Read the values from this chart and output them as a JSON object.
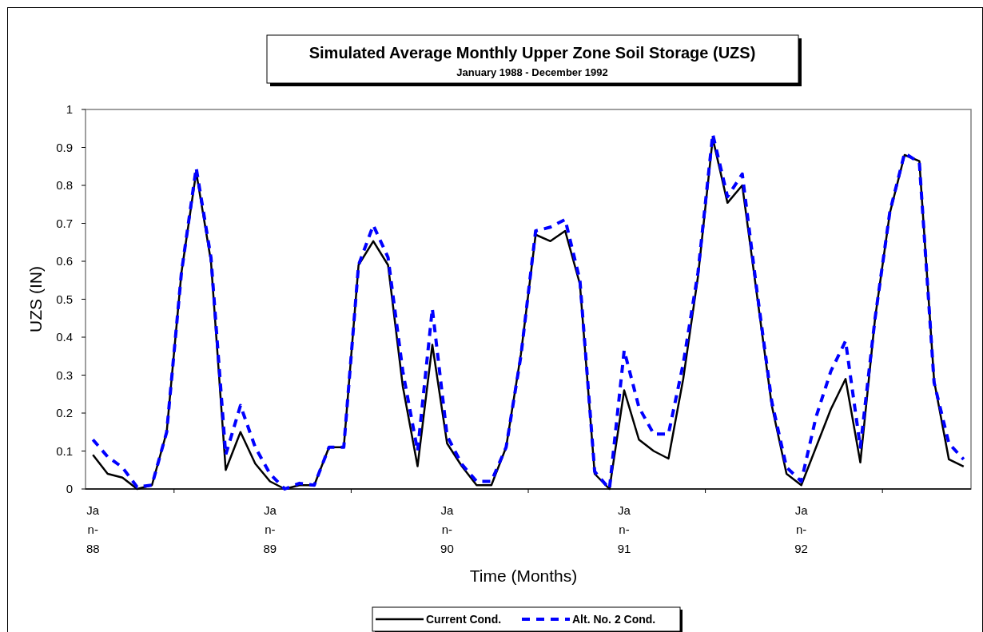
{
  "chart_data": {
    "type": "line",
    "title": "Simulated Average Monthly Upper Zone Soil Storage (UZS)",
    "subtitle": "January 1988 - December 1992",
    "xlabel": "Time (Months)",
    "ylabel": "UZS (IN)",
    "categories": [
      "Jan-88",
      null,
      null,
      null,
      null,
      null,
      null,
      null,
      null,
      null,
      null,
      null,
      "Jan-89",
      null,
      null,
      null,
      null,
      null,
      null,
      null,
      null,
      null,
      null,
      null,
      "Jan-90",
      null,
      null,
      null,
      null,
      null,
      null,
      null,
      null,
      null,
      null,
      null,
      "Jan-91",
      null,
      null,
      null,
      null,
      null,
      null,
      null,
      null,
      null,
      null,
      null,
      "Jan-92",
      null,
      null,
      null,
      null,
      null,
      null,
      null,
      null,
      null,
      null,
      null
    ],
    "ylim": [
      0,
      1
    ],
    "yticks": [
      0,
      0.1,
      0.2,
      0.3,
      0.4,
      0.5,
      0.6,
      0.7,
      0.8,
      0.9,
      1
    ],
    "grid": false,
    "legend": "bottom",
    "marker": "none",
    "series": [
      {
        "name": "Current Cond.",
        "color": "#000000",
        "line_style": "solid",
        "values": [
          0.09,
          0.04,
          0.03,
          0.0,
          0.01,
          0.15,
          0.57,
          0.835,
          0.6,
          0.05,
          0.15,
          0.067,
          0.02,
          0.0,
          0.01,
          0.01,
          0.11,
          0.11,
          0.59,
          0.653,
          0.59,
          0.27,
          0.06,
          0.38,
          0.12,
          0.06,
          0.01,
          0.01,
          0.11,
          0.355,
          0.67,
          0.653,
          0.68,
          0.54,
          0.04,
          0.0,
          0.26,
          0.13,
          0.1,
          0.08,
          0.29,
          0.56,
          0.924,
          0.754,
          0.8,
          0.51,
          0.22,
          0.04,
          0.01,
          0.11,
          0.21,
          0.29,
          0.07,
          0.45,
          0.727,
          0.88,
          0.864,
          0.285,
          0.078,
          0.059
        ]
      },
      {
        "name": "Alt. No. 2 Cond.",
        "color": "#0000ff",
        "line_style": "dashed",
        "values": [
          0.13,
          0.085,
          0.057,
          0.005,
          0.01,
          0.15,
          0.57,
          0.846,
          0.61,
          0.09,
          0.22,
          0.11,
          0.04,
          0.0,
          0.015,
          0.01,
          0.11,
          0.11,
          0.59,
          0.695,
          0.61,
          0.31,
          0.1,
          0.475,
          0.14,
          0.065,
          0.02,
          0.02,
          0.11,
          0.35,
          0.68,
          0.69,
          0.71,
          0.55,
          0.046,
          0.0,
          0.365,
          0.215,
          0.145,
          0.145,
          0.33,
          0.57,
          0.935,
          0.77,
          0.83,
          0.52,
          0.23,
          0.057,
          0.02,
          0.19,
          0.31,
          0.39,
          0.11,
          0.45,
          0.73,
          0.885,
          0.86,
          0.28,
          0.12,
          0.078
        ]
      }
    ]
  }
}
